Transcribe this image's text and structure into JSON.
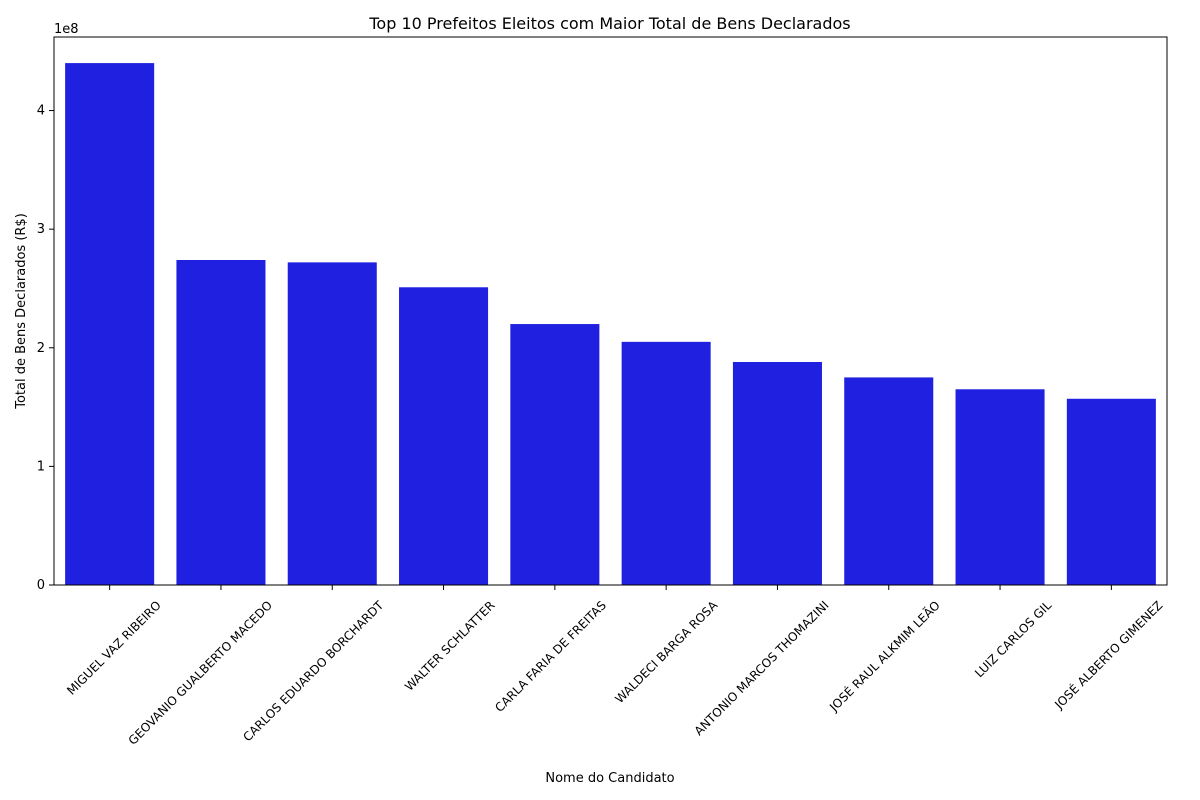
{
  "chart_data": {
    "type": "bar",
    "title": "Top 10 Prefeitos Eleitos com Maior Total de Bens Declarados",
    "xlabel": "Nome do Candidato",
    "ylabel": "Total de Bens Declarados (R$)",
    "offset_label": "1e8",
    "categories": [
      "MIGUEL VAZ RIBEIRO",
      "GEOVANIO GUALBERTO MACEDO",
      "CARLOS EDUARDO BORCHARDT",
      "WALTER SCHLATTER",
      "CARLA FARIA DE FREITAS",
      "WALDECI BARGA ROSA",
      "ANTONIO MARCOS THOMAZINI",
      "JOSÉ RAUL ALKMIM LEÃO",
      "LUIZ CARLOS GIL",
      "JOSÉ ALBERTO GIMENEZ"
    ],
    "values": [
      440000000,
      274000000,
      272000000,
      251000000,
      220000000,
      205000000,
      188000000,
      175000000,
      165000000,
      157000000
    ],
    "ylim": [
      0,
      462000000
    ],
    "yticks": [
      0,
      100000000,
      200000000,
      300000000,
      400000000
    ],
    "ytick_labels": [
      "0",
      "1",
      "2",
      "3",
      "4"
    ],
    "bar_color": "#2020e0",
    "grid": false,
    "xtick_rotation": 45
  }
}
